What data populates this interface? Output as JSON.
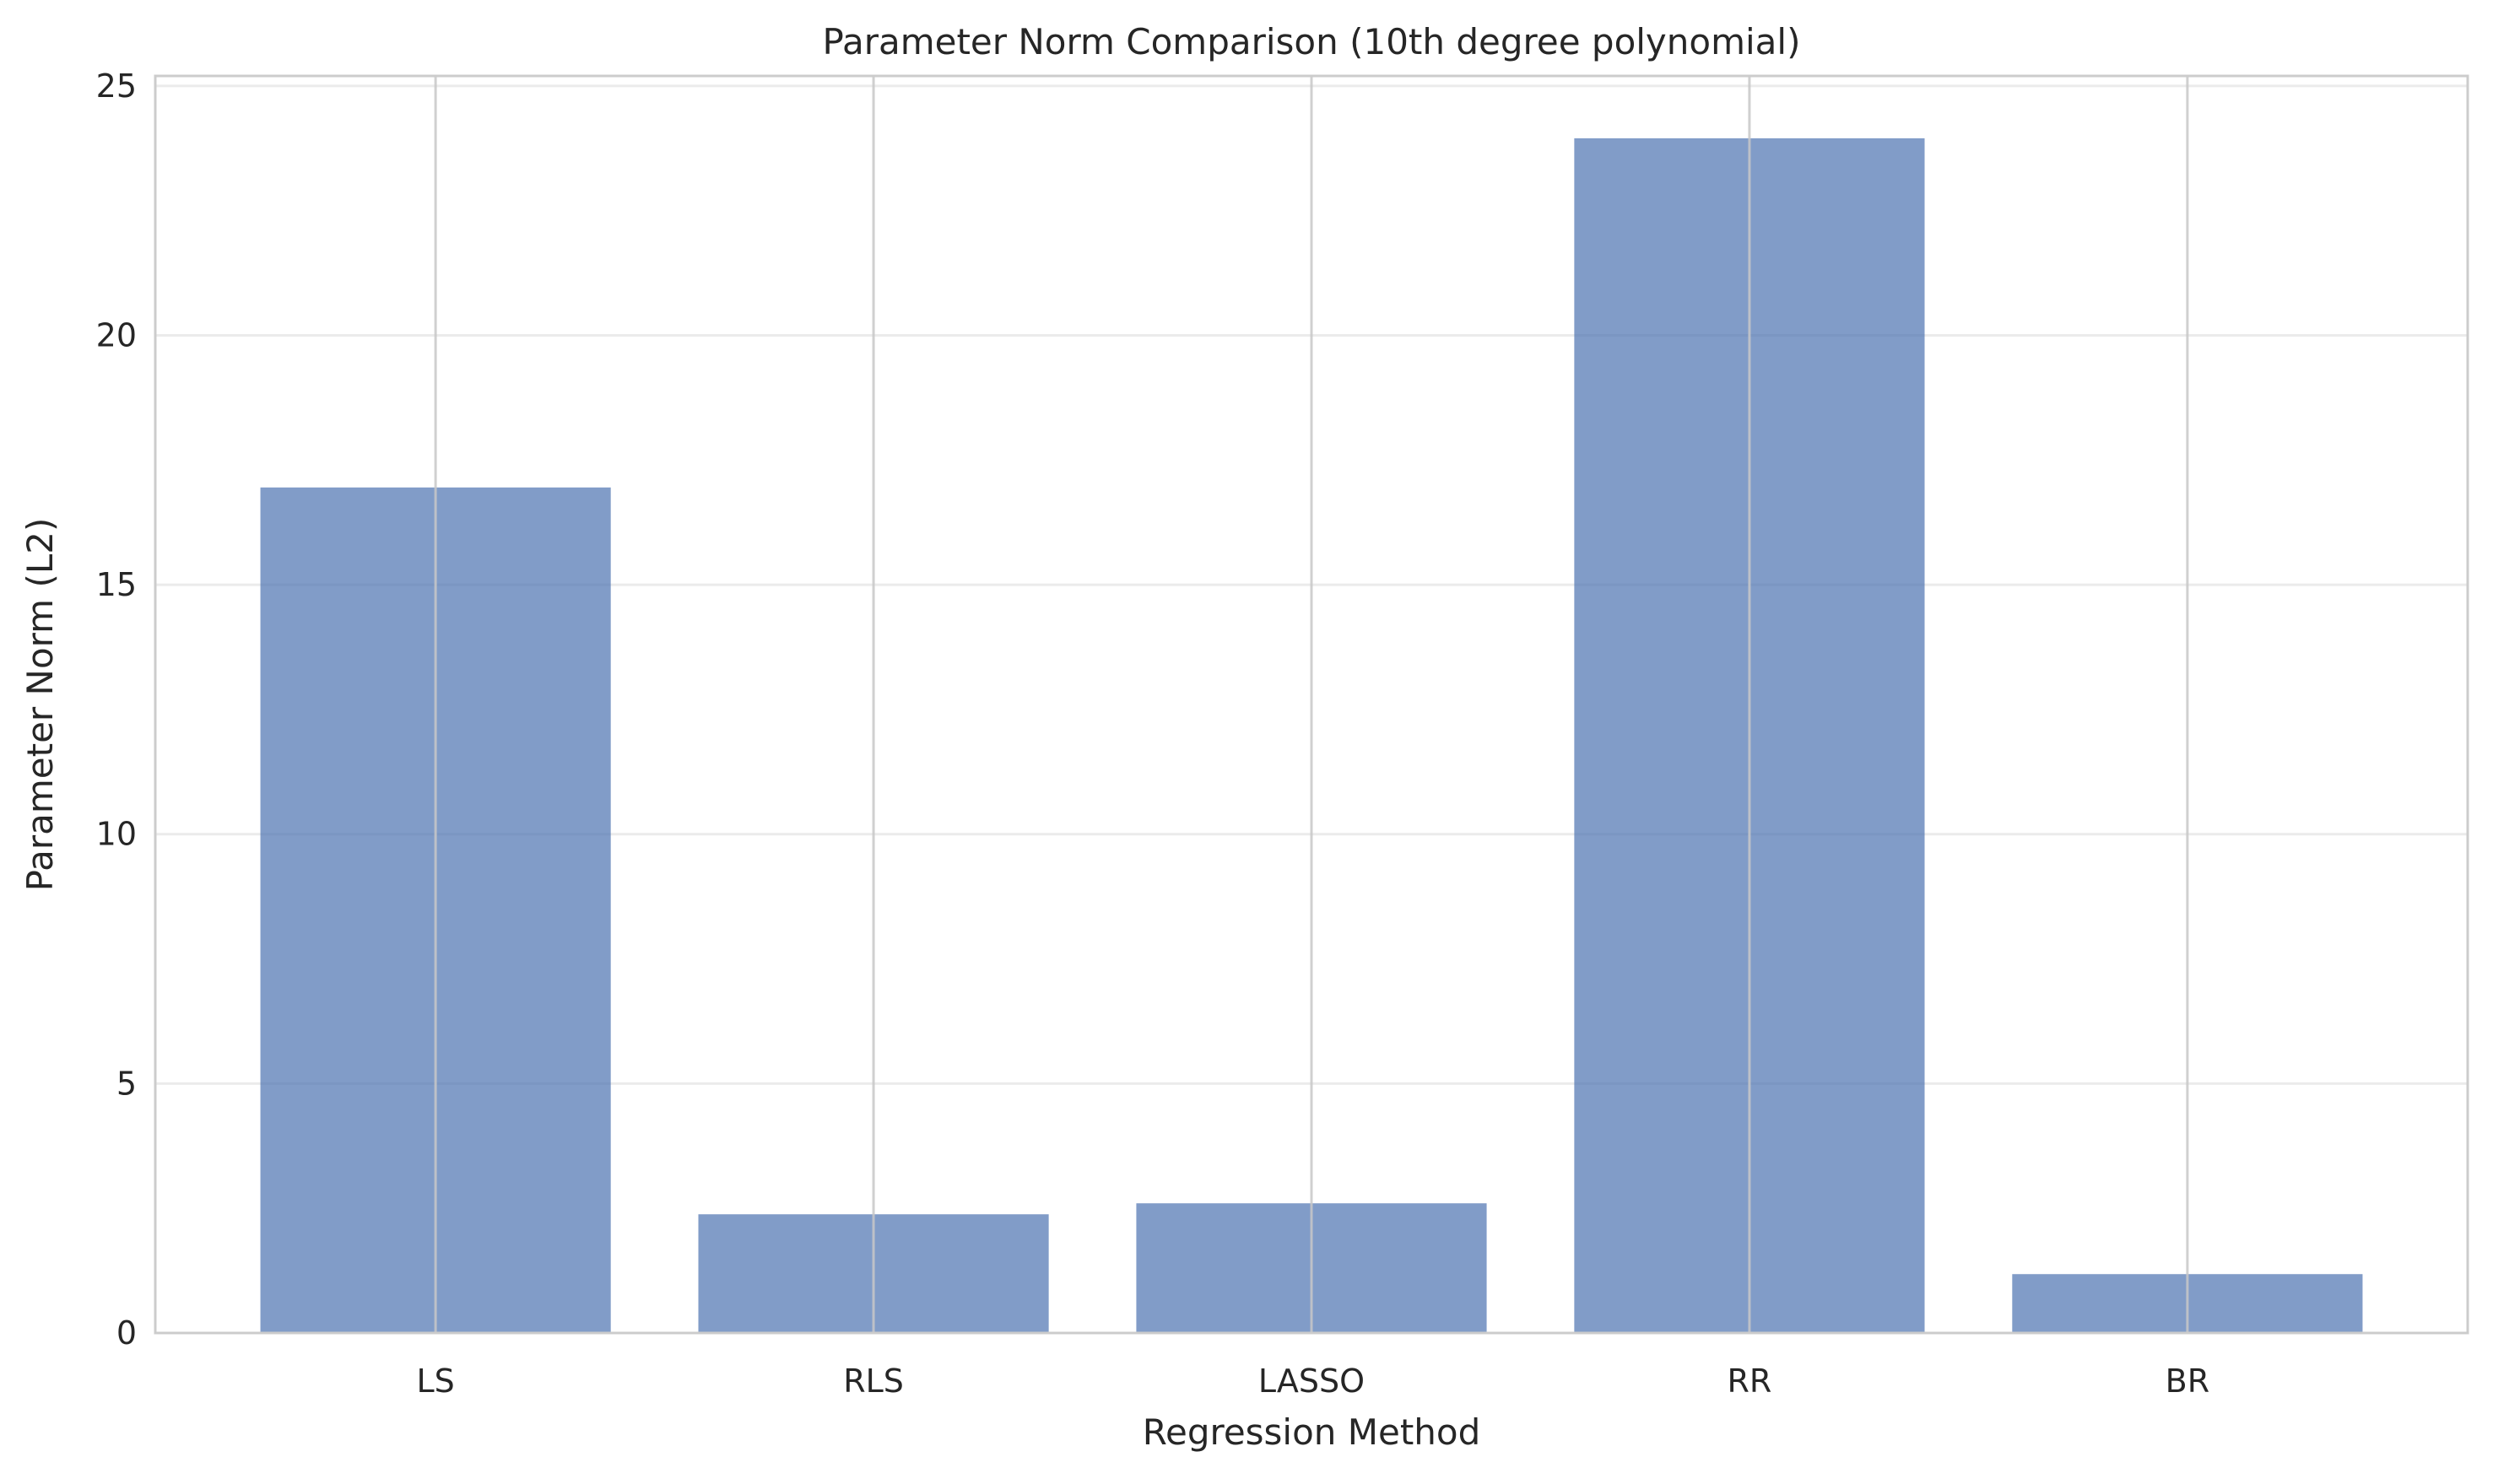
{
  "chart_data": {
    "type": "bar",
    "title": "Parameter Norm Comparison (10th degree polynomial)",
    "xlabel": "Regression Method",
    "ylabel": "Parameter Norm (L2)",
    "categories": [
      "LS",
      "RLS",
      "LASSO",
      "RR",
      "BR"
    ],
    "values": [
      16.95,
      2.38,
      2.6,
      23.95,
      1.18
    ],
    "ylim": [
      0,
      25.2
    ],
    "yticks": [
      0,
      5,
      10,
      15,
      20,
      25
    ],
    "ytick_labels": [
      "0",
      "5",
      "10",
      "15",
      "20",
      "25"
    ],
    "grid": true,
    "colors": {
      "bar": "#4c72b0",
      "bar_opacity": 0.7,
      "grid_x": "#c8c8c8",
      "grid_y": "#ebebeb",
      "spine": "#cccccc",
      "text": "#262626"
    }
  }
}
